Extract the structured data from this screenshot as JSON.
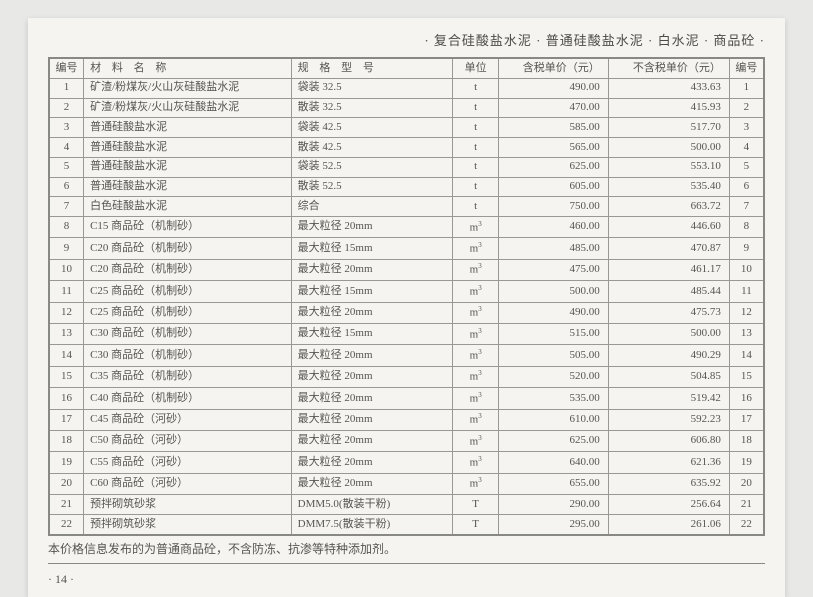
{
  "header_text": "· 复合硅酸盐水泥 · 普通硅酸盐水泥 · 白水泥 · 商品砼 ·",
  "columns": {
    "idx": "编号",
    "name": "材 料 名 称",
    "spec": "规 格 型 号",
    "unit": "单位",
    "price_tax": "含税单价（元）",
    "price_notax": "不含税单价（元）",
    "idx2": "编号"
  },
  "rows": [
    {
      "i": "1",
      "name": "矿渣/粉煤灰/火山灰硅酸盐水泥",
      "spec": "袋装 32.5",
      "unit": "t",
      "p1": "490.00",
      "p2": "433.63",
      "i2": "1"
    },
    {
      "i": "2",
      "name": "矿渣/粉煤灰/火山灰硅酸盐水泥",
      "spec": "散装 32.5",
      "unit": "t",
      "p1": "470.00",
      "p2": "415.93",
      "i2": "2"
    },
    {
      "i": "3",
      "name": "普通硅酸盐水泥",
      "spec": "袋装 42.5",
      "unit": "t",
      "p1": "585.00",
      "p2": "517.70",
      "i2": "3"
    },
    {
      "i": "4",
      "name": "普通硅酸盐水泥",
      "spec": "散装 42.5",
      "unit": "t",
      "p1": "565.00",
      "p2": "500.00",
      "i2": "4"
    },
    {
      "i": "5",
      "name": "普通硅酸盐水泥",
      "spec": "袋装 52.5",
      "unit": "t",
      "p1": "625.00",
      "p2": "553.10",
      "i2": "5"
    },
    {
      "i": "6",
      "name": "普通硅酸盐水泥",
      "spec": "散装 52.5",
      "unit": "t",
      "p1": "605.00",
      "p2": "535.40",
      "i2": "6"
    },
    {
      "i": "7",
      "name": "白色硅酸盐水泥",
      "spec": "综合",
      "unit": "t",
      "p1": "750.00",
      "p2": "663.72",
      "i2": "7"
    },
    {
      "i": "8",
      "name": "C15 商品砼（机制砂）",
      "spec": "最大粒径 20mm",
      "unit": "m³",
      "p1": "460.00",
      "p2": "446.60",
      "i2": "8"
    },
    {
      "i": "9",
      "name": "C20 商品砼（机制砂）",
      "spec": "最大粒径 15mm",
      "unit": "m³",
      "p1": "485.00",
      "p2": "470.87",
      "i2": "9"
    },
    {
      "i": "10",
      "name": "C20 商品砼（机制砂）",
      "spec": "最大粒径 20mm",
      "unit": "m³",
      "p1": "475.00",
      "p2": "461.17",
      "i2": "10"
    },
    {
      "i": "11",
      "name": "C25 商品砼（机制砂）",
      "spec": "最大粒径 15mm",
      "unit": "m³",
      "p1": "500.00",
      "p2": "485.44",
      "i2": "11"
    },
    {
      "i": "12",
      "name": "C25 商品砼（机制砂）",
      "spec": "最大粒径 20mm",
      "unit": "m³",
      "p1": "490.00",
      "p2": "475.73",
      "i2": "12"
    },
    {
      "i": "13",
      "name": "C30 商品砼（机制砂）",
      "spec": "最大粒径 15mm",
      "unit": "m³",
      "p1": "515.00",
      "p2": "500.00",
      "i2": "13"
    },
    {
      "i": "14",
      "name": "C30 商品砼（机制砂）",
      "spec": "最大粒径 20mm",
      "unit": "m³",
      "p1": "505.00",
      "p2": "490.29",
      "i2": "14"
    },
    {
      "i": "15",
      "name": "C35 商品砼（机制砂）",
      "spec": "最大粒径 20mm",
      "unit": "m³",
      "p1": "520.00",
      "p2": "504.85",
      "i2": "15"
    },
    {
      "i": "16",
      "name": "C40 商品砼（机制砂）",
      "spec": "最大粒径 20mm",
      "unit": "m³",
      "p1": "535.00",
      "p2": "519.42",
      "i2": "16"
    },
    {
      "i": "17",
      "name": "C45 商品砼（河砂）",
      "spec": "最大粒径 20mm",
      "unit": "m³",
      "p1": "610.00",
      "p2": "592.23",
      "i2": "17"
    },
    {
      "i": "18",
      "name": "C50 商品砼（河砂）",
      "spec": "最大粒径 20mm",
      "unit": "m³",
      "p1": "625.00",
      "p2": "606.80",
      "i2": "18"
    },
    {
      "i": "19",
      "name": "C55 商品砼（河砂）",
      "spec": "最大粒径 20mm",
      "unit": "m³",
      "p1": "640.00",
      "p2": "621.36",
      "i2": "19"
    },
    {
      "i": "20",
      "name": "C60 商品砼（河砂）",
      "spec": "最大粒径 20mm",
      "unit": "m³",
      "p1": "655.00",
      "p2": "635.92",
      "i2": "20"
    },
    {
      "i": "21",
      "name": "预拌砌筑砂浆",
      "spec": "DMM5.0(散装干粉)",
      "unit": "T",
      "p1": "290.00",
      "p2": "256.64",
      "i2": "21"
    },
    {
      "i": "22",
      "name": "预拌砌筑砂浆",
      "spec": "DMM7.5(散装干粉)",
      "unit": "T",
      "p1": "295.00",
      "p2": "261.06",
      "i2": "22"
    }
  ],
  "footer_note": "本价格信息发布的为普通商品砼，不含防冻、抗渗等特种添加剂。",
  "page_num": "· 14 ·"
}
